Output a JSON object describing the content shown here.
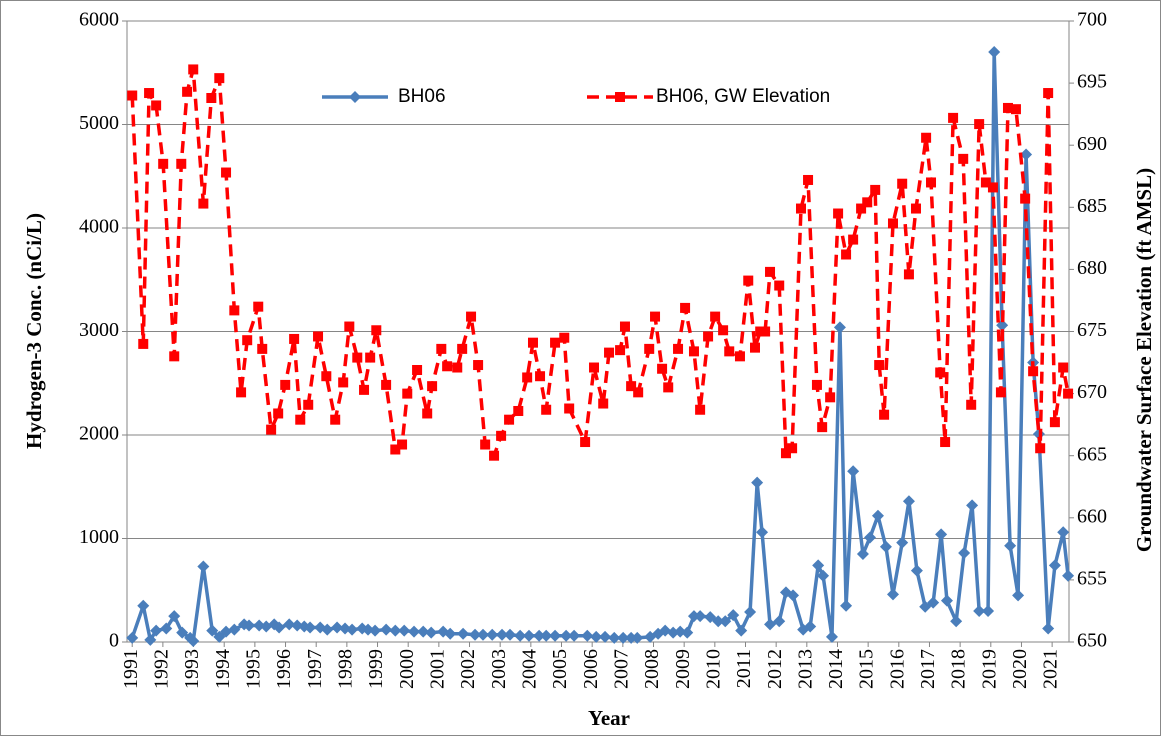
{
  "chart_data": {
    "type": "line",
    "x_label": "Year",
    "y_label": "Hydrogen-3 Conc. (nCi/L)",
    "y2_label": "Groundwater Surface Elevation (ft AMSL)",
    "xlim": [
      1990.83,
      2021.55
    ],
    "xticks": [
      1991,
      1992,
      1993,
      1994,
      1995,
      1996,
      1997,
      1998,
      1999,
      2000,
      2001,
      2002,
      2003,
      2004,
      2005,
      2006,
      2007,
      2008,
      2009,
      2010,
      2011,
      2012,
      2013,
      2014,
      2015,
      2016,
      2017,
      2018,
      2019,
      2020,
      2021
    ],
    "ylim": [
      0,
      6000
    ],
    "yticks": [
      0,
      1000,
      2000,
      3000,
      4000,
      5000,
      6000
    ],
    "y2lim": [
      650,
      700
    ],
    "y2ticks": [
      650,
      655,
      660,
      665,
      670,
      675,
      680,
      685,
      690,
      695,
      700
    ],
    "grid": true,
    "legend": "top",
    "series": [
      {
        "name": "BH06",
        "color": "#4a7ebb",
        "marker": "diamond",
        "line_style": "solid",
        "x": [
          1991.0,
          1991.36,
          1991.59,
          1991.78,
          1992.11,
          1992.37,
          1992.63,
          1992.89,
          1992.99,
          1993.32,
          1993.61,
          1993.84,
          1994.06,
          1994.33,
          1994.65,
          1994.81,
          1995.14,
          1995.37,
          1995.63,
          1995.79,
          1996.12,
          1996.38,
          1996.61,
          1996.8,
          1997.13,
          1997.36,
          1997.68,
          1997.94,
          1998.17,
          1998.5,
          1998.69,
          1998.92,
          1999.28,
          1999.58,
          1999.87,
          2000.19,
          2000.49,
          2000.75,
          2001.14,
          2001.37,
          2001.79,
          2002.18,
          2002.44,
          2002.74,
          2003.06,
          2003.32,
          2003.65,
          2003.94,
          2004.27,
          2004.5,
          2004.79,
          2005.15,
          2005.41,
          2005.84,
          2006.13,
          2006.42,
          2006.72,
          2007.01,
          2007.27,
          2007.47,
          2007.89,
          2008.15,
          2008.38,
          2008.64,
          2008.87,
          2009.1,
          2009.32,
          2009.52,
          2009.85,
          2010.11,
          2010.34,
          2010.6,
          2010.86,
          2011.15,
          2011.38,
          2011.54,
          2011.8,
          2012.1,
          2012.32,
          2012.55,
          2012.88,
          2013.11,
          2013.37,
          2013.53,
          2013.82,
          2014.08,
          2014.28,
          2014.51,
          2014.83,
          2015.06,
          2015.32,
          2015.58,
          2015.81,
          2016.11,
          2016.33,
          2016.59,
          2016.86,
          2017.12,
          2017.38,
          2017.57,
          2017.87,
          2018.13,
          2018.39,
          2018.62,
          2018.91,
          2019.11,
          2019.37,
          2019.63,
          2019.89,
          2020.15,
          2020.38,
          2020.57,
          2020.87,
          2021.09,
          2021.36,
          2021.52
        ],
        "values": [
          40,
          350,
          20,
          110,
          130,
          250,
          90,
          40,
          10,
          730,
          110,
          50,
          100,
          120,
          170,
          160,
          160,
          150,
          170,
          140,
          170,
          160,
          150,
          140,
          140,
          120,
          140,
          130,
          120,
          130,
          120,
          110,
          120,
          110,
          110,
          100,
          100,
          90,
          100,
          80,
          80,
          70,
          70,
          70,
          70,
          70,
          60,
          60,
          60,
          60,
          60,
          60,
          60,
          60,
          50,
          50,
          40,
          40,
          40,
          40,
          50,
          80,
          110,
          90,
          100,
          90,
          250,
          250,
          240,
          200,
          200,
          260,
          110,
          290,
          1540,
          1060,
          170,
          200,
          480,
          450,
          120,
          150,
          740,
          640,
          50,
          3040,
          350,
          1650,
          850,
          1010,
          1220,
          920,
          460,
          960,
          1360,
          690,
          340,
          380,
          1040,
          400,
          200,
          860,
          1320,
          300,
          300,
          5700,
          3060,
          930,
          450,
          4710,
          2700,
          2010,
          130,
          740,
          1060,
          640
        ]
      },
      {
        "name": "BH06, GW Elevation",
        "color": "#ff0000",
        "marker": "square",
        "line_style": "dashed",
        "axis": "y2",
        "x": [
          1991.0,
          1991.36,
          1991.55,
          1991.78,
          1992.01,
          1992.37,
          1992.6,
          1992.79,
          1992.99,
          1993.32,
          1993.58,
          1993.84,
          1994.06,
          1994.33,
          1994.55,
          1994.75,
          1995.11,
          1995.24,
          1995.53,
          1995.76,
          1995.99,
          1996.28,
          1996.48,
          1996.74,
          1997.06,
          1997.33,
          1997.62,
          1997.88,
          1998.08,
          1998.34,
          1998.56,
          1998.76,
          1998.96,
          1999.28,
          1999.58,
          1999.8,
          1999.97,
          2000.29,
          2000.62,
          2000.78,
          2001.08,
          2001.27,
          2001.6,
          2001.76,
          2002.05,
          2002.28,
          2002.51,
          2002.8,
          2003.03,
          2003.29,
          2003.59,
          2003.88,
          2004.07,
          2004.3,
          2004.5,
          2004.79,
          2005.09,
          2005.25,
          2005.77,
          2006.06,
          2006.36,
          2006.55,
          2006.91,
          2007.07,
          2007.27,
          2007.5,
          2007.86,
          2008.05,
          2008.28,
          2008.48,
          2008.8,
          2009.03,
          2009.32,
          2009.52,
          2009.78,
          2010.01,
          2010.27,
          2010.47,
          2010.82,
          2011.09,
          2011.31,
          2011.48,
          2011.64,
          2011.8,
          2012.1,
          2012.32,
          2012.52,
          2012.81,
          2013.04,
          2013.33,
          2013.5,
          2013.76,
          2014.02,
          2014.28,
          2014.51,
          2014.77,
          2014.97,
          2015.23,
          2015.36,
          2015.52,
          2015.81,
          2016.11,
          2016.33,
          2016.56,
          2016.89,
          2017.05,
          2017.35,
          2017.51,
          2017.77,
          2018.1,
          2018.36,
          2018.62,
          2018.84,
          2019.07,
          2019.33,
          2019.56,
          2019.82,
          2020.12,
          2020.38,
          2020.61,
          2020.87,
          2021.09,
          2021.36,
          2021.52
        ],
        "values": [
          694.0,
          674.0,
          694.2,
          693.2,
          688.5,
          673.0,
          688.5,
          694.3,
          696.1,
          685.3,
          693.8,
          695.4,
          687.8,
          676.7,
          670.1,
          674.3,
          677.0,
          673.6,
          667.1,
          668.4,
          670.7,
          674.4,
          667.9,
          669.1,
          674.6,
          671.4,
          667.9,
          670.9,
          675.4,
          672.9,
          670.3,
          672.9,
          675.1,
          670.7,
          665.5,
          665.9,
          670.0,
          671.9,
          668.4,
          670.6,
          673.6,
          672.2,
          672.1,
          673.6,
          676.2,
          672.3,
          665.9,
          665.0,
          666.6,
          667.9,
          668.6,
          671.3,
          674.1,
          671.4,
          668.7,
          674.1,
          674.5,
          668.8,
          666.1,
          672.1,
          669.2,
          673.3,
          673.5,
          675.4,
          670.6,
          670.1,
          673.6,
          676.2,
          672.0,
          670.5,
          673.6,
          676.9,
          673.4,
          668.7,
          674.6,
          676.2,
          675.1,
          673.4,
          673.0,
          679.1,
          673.7,
          675.0,
          675.0,
          679.8,
          678.7,
          665.2,
          665.6,
          684.9,
          687.2,
          670.7,
          667.3,
          669.7,
          684.5,
          681.2,
          682.4,
          684.9,
          685.4,
          686.4,
          672.3,
          668.3,
          683.7,
          686.9,
          679.6,
          684.9,
          690.6,
          687.0,
          671.7,
          666.1,
          692.2,
          688.9,
          669.1,
          691.7,
          687.0,
          686.6,
          670.1,
          693.0,
          692.9,
          685.7,
          671.8,
          665.6,
          694.2,
          667.7,
          672.1,
          670.0
        ]
      }
    ]
  }
}
